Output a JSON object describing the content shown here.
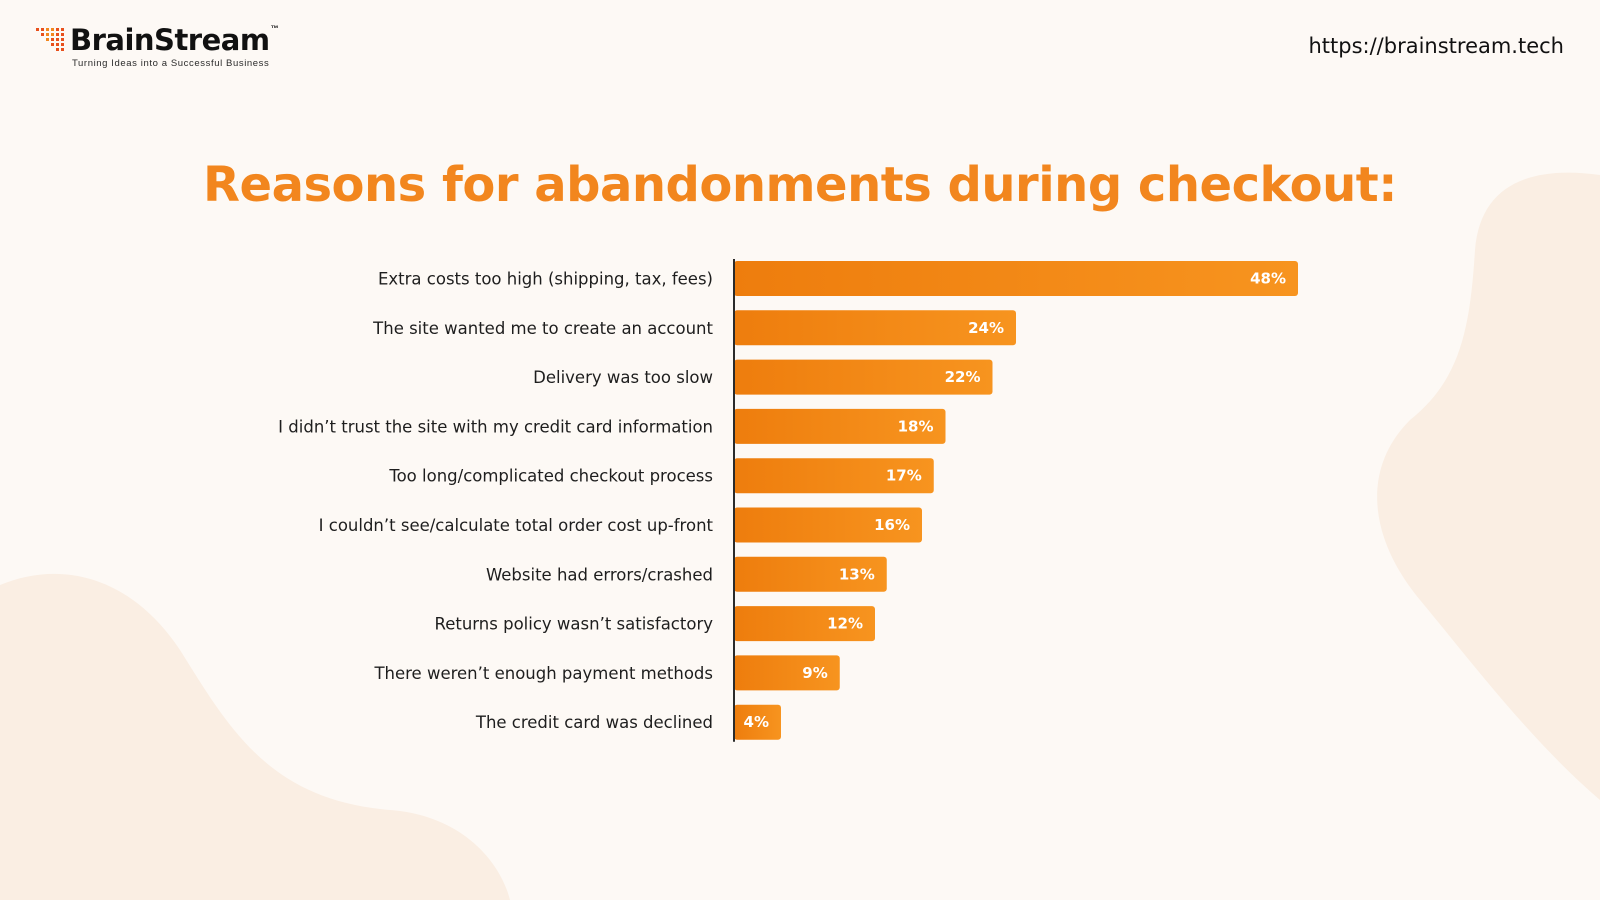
{
  "header": {
    "brand_name": "BrainStream",
    "brand_tm": "™",
    "tagline": "Turning Ideas into a Successful Business",
    "url": "https://brainstream.tech"
  },
  "colors": {
    "accent": "#f2861e",
    "bar_dark": "#ee7d0d",
    "bar_light": "#f7941f",
    "background": "#fdf9f5",
    "blob": "#faeee3"
  },
  "chart_data": {
    "type": "bar",
    "orientation": "horizontal",
    "title": "Reasons for abandonments during checkout:",
    "categories": [
      "Extra costs too high (shipping, tax, fees)",
      "The site wanted me to create an account",
      "Delivery was too slow",
      "I didn’t trust the site with my credit card information",
      "Too long/complicated checkout process",
      "I couldn’t see/calculate total order cost up-front",
      "Website had errors/crashed",
      "Returns policy wasn’t satisfactory",
      "There weren’t enough payment methods",
      "The credit card was declined"
    ],
    "values": [
      48,
      24,
      22,
      18,
      17,
      16,
      13,
      12,
      9,
      4
    ],
    "value_labels": [
      "48%",
      "24%",
      "22%",
      "18%",
      "17%",
      "16%",
      "13%",
      "12%",
      "9%",
      "4%"
    ],
    "unit": "%",
    "xlim": [
      0,
      48
    ],
    "grid": false,
    "legend": "none"
  }
}
